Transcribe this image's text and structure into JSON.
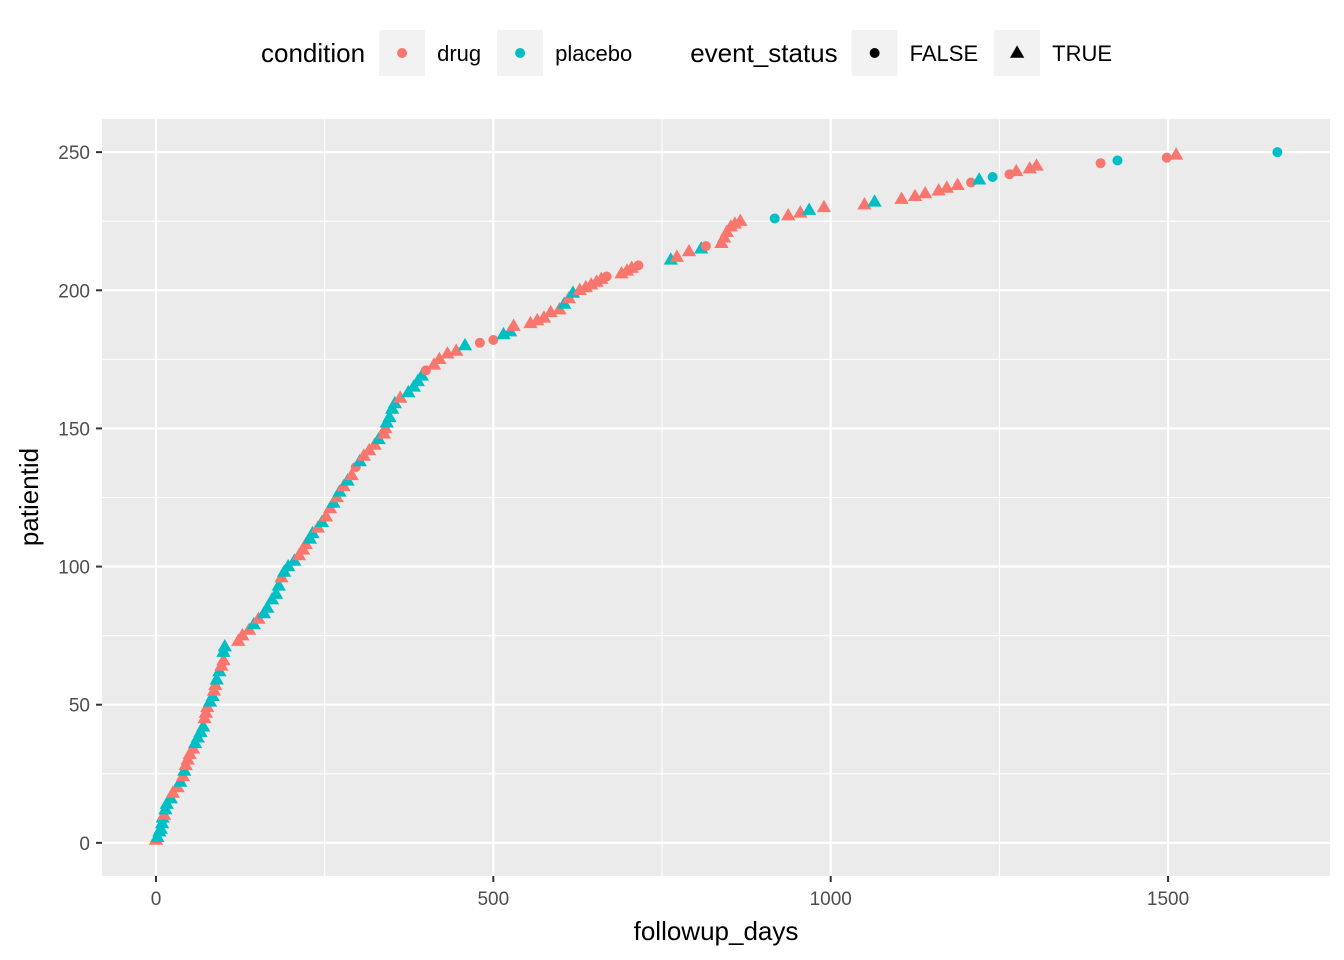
{
  "chart_data": {
    "type": "scatter",
    "xlabel": "followup_days",
    "ylabel": "patientid",
    "xlim": [
      -80,
      1740
    ],
    "ylim": [
      -12,
      262
    ],
    "x_ticks": [
      0,
      500,
      1000,
      1500
    ],
    "y_ticks": [
      0,
      50,
      100,
      150,
      200,
      250
    ],
    "x_tick_labels": [
      "0",
      "500",
      "1000",
      "1500"
    ],
    "y_tick_labels": [
      "0",
      "50",
      "100",
      "150",
      "200",
      "250"
    ],
    "grid": true,
    "legend_position": "top",
    "legends": [
      {
        "title": "condition",
        "mapping": "color",
        "entries": [
          {
            "label": "drug",
            "color": "#F8766D"
          },
          {
            "label": "placebo",
            "color": "#00BFC4"
          }
        ]
      },
      {
        "title": "event_status",
        "mapping": "shape",
        "entries": [
          {
            "label": "FALSE",
            "shape": "circle"
          },
          {
            "label": "TRUE",
            "shape": "triangle"
          }
        ]
      }
    ],
    "colors": {
      "drug": "#F8766D",
      "placebo": "#00BFC4"
    },
    "panel_background": "#EBEBEB",
    "points": [
      [
        0,
        1,
        "drug",
        "TRUE"
      ],
      [
        2,
        2,
        "placebo",
        "TRUE"
      ],
      [
        5,
        4,
        "placebo",
        "TRUE"
      ],
      [
        7,
        5,
        "placebo",
        "TRUE"
      ],
      [
        9,
        7,
        "placebo",
        "TRUE"
      ],
      [
        10,
        9,
        "placebo",
        "TRUE"
      ],
      [
        12,
        10,
        "drug",
        "TRUE"
      ],
      [
        14,
        12,
        "placebo",
        "TRUE"
      ],
      [
        16,
        14,
        "placebo",
        "TRUE"
      ],
      [
        22,
        16,
        "placebo",
        "TRUE"
      ],
      [
        25,
        18,
        "drug",
        "TRUE"
      ],
      [
        32,
        20,
        "drug",
        "TRUE"
      ],
      [
        36,
        22,
        "placebo",
        "TRUE"
      ],
      [
        40,
        24,
        "drug",
        "TRUE"
      ],
      [
        42,
        26,
        "placebo",
        "TRUE"
      ],
      [
        44,
        28,
        "drug",
        "TRUE"
      ],
      [
        47,
        30,
        "drug",
        "TRUE"
      ],
      [
        50,
        32,
        "drug",
        "TRUE"
      ],
      [
        55,
        34,
        "drug",
        "TRUE"
      ],
      [
        58,
        36,
        "placebo",
        "TRUE"
      ],
      [
        62,
        38,
        "placebo",
        "TRUE"
      ],
      [
        66,
        40,
        "placebo",
        "TRUE"
      ],
      [
        70,
        42,
        "placebo",
        "TRUE"
      ],
      [
        72,
        45,
        "drug",
        "TRUE"
      ],
      [
        74,
        47,
        "drug",
        "TRUE"
      ],
      [
        76,
        49,
        "drug",
        "TRUE"
      ],
      [
        80,
        51,
        "placebo",
        "TRUE"
      ],
      [
        84,
        53,
        "placebo",
        "TRUE"
      ],
      [
        86,
        55,
        "drug",
        "TRUE"
      ],
      [
        88,
        57,
        "drug",
        "TRUE"
      ],
      [
        90,
        59,
        "placebo",
        "TRUE"
      ],
      [
        94,
        62,
        "placebo",
        "TRUE"
      ],
      [
        97,
        64,
        "drug",
        "TRUE"
      ],
      [
        100,
        66,
        "drug",
        "TRUE"
      ],
      [
        100,
        69,
        "placebo",
        "TRUE"
      ],
      [
        102,
        71,
        "placebo",
        "TRUE"
      ],
      [
        122,
        73,
        "drug",
        "TRUE"
      ],
      [
        128,
        75,
        "drug",
        "TRUE"
      ],
      [
        138,
        77,
        "drug",
        "TRUE"
      ],
      [
        145,
        79,
        "placebo",
        "TRUE"
      ],
      [
        152,
        81,
        "drug",
        "TRUE"
      ],
      [
        160,
        83,
        "placebo",
        "TRUE"
      ],
      [
        165,
        85,
        "placebo",
        "TRUE"
      ],
      [
        172,
        88,
        "placebo",
        "TRUE"
      ],
      [
        178,
        90,
        "placebo",
        "TRUE"
      ],
      [
        182,
        93,
        "placebo",
        "TRUE"
      ],
      [
        186,
        96,
        "drug",
        "TRUE"
      ],
      [
        190,
        98,
        "placebo",
        "TRUE"
      ],
      [
        196,
        100,
        "placebo",
        "TRUE"
      ],
      [
        205,
        102,
        "placebo",
        "TRUE"
      ],
      [
        212,
        104,
        "drug",
        "TRUE"
      ],
      [
        218,
        106,
        "drug",
        "TRUE"
      ],
      [
        222,
        108,
        "drug",
        "TRUE"
      ],
      [
        228,
        110,
        "placebo",
        "TRUE"
      ],
      [
        232,
        112,
        "placebo",
        "TRUE"
      ],
      [
        240,
        114,
        "drug",
        "TRUE"
      ],
      [
        246,
        116,
        "placebo",
        "TRUE"
      ],
      [
        252,
        118,
        "drug",
        "TRUE"
      ],
      [
        258,
        121,
        "drug",
        "TRUE"
      ],
      [
        263,
        123,
        "placebo",
        "TRUE"
      ],
      [
        268,
        125,
        "drug",
        "TRUE"
      ],
      [
        272,
        127,
        "placebo",
        "TRUE"
      ],
      [
        278,
        129,
        "drug",
        "TRUE"
      ],
      [
        284,
        131,
        "placebo",
        "TRUE"
      ],
      [
        290,
        133,
        "drug",
        "TRUE"
      ],
      [
        296,
        136,
        "drug",
        "FALSE"
      ],
      [
        302,
        138,
        "placebo",
        "TRUE"
      ],
      [
        308,
        140,
        "drug",
        "TRUE"
      ],
      [
        316,
        142,
        "drug",
        "TRUE"
      ],
      [
        324,
        144,
        "drug",
        "TRUE"
      ],
      [
        330,
        146,
        "placebo",
        "TRUE"
      ],
      [
        338,
        148,
        "drug",
        "TRUE"
      ],
      [
        340,
        150,
        "drug",
        "TRUE"
      ],
      [
        342,
        152,
        "placebo",
        "TRUE"
      ],
      [
        346,
        154,
        "placebo",
        "TRUE"
      ],
      [
        350,
        157,
        "placebo",
        "TRUE"
      ],
      [
        354,
        159,
        "placebo",
        "TRUE"
      ],
      [
        362,
        161,
        "drug",
        "TRUE"
      ],
      [
        374,
        163,
        "placebo",
        "TRUE"
      ],
      [
        382,
        165,
        "placebo",
        "TRUE"
      ],
      [
        388,
        167,
        "placebo",
        "TRUE"
      ],
      [
        394,
        169,
        "placebo",
        "TRUE"
      ],
      [
        400,
        171,
        "drug",
        "FALSE"
      ],
      [
        412,
        173,
        "drug",
        "TRUE"
      ],
      [
        420,
        175,
        "drug",
        "TRUE"
      ],
      [
        432,
        177,
        "drug",
        "TRUE"
      ],
      [
        445,
        178,
        "drug",
        "TRUE"
      ],
      [
        458,
        180,
        "placebo",
        "TRUE"
      ],
      [
        480,
        181,
        "drug",
        "FALSE"
      ],
      [
        500,
        182,
        "drug",
        "FALSE"
      ],
      [
        515,
        184,
        "placebo",
        "TRUE"
      ],
      [
        525,
        185,
        "placebo",
        "TRUE"
      ],
      [
        530,
        187,
        "drug",
        "TRUE"
      ],
      [
        555,
        188,
        "drug",
        "TRUE"
      ],
      [
        565,
        189,
        "drug",
        "TRUE"
      ],
      [
        575,
        190,
        "drug",
        "TRUE"
      ],
      [
        585,
        192,
        "drug",
        "TRUE"
      ],
      [
        598,
        193,
        "drug",
        "TRUE"
      ],
      [
        605,
        195,
        "placebo",
        "TRUE"
      ],
      [
        612,
        197,
        "drug",
        "TRUE"
      ],
      [
        618,
        199,
        "placebo",
        "TRUE"
      ],
      [
        628,
        200,
        "drug",
        "TRUE"
      ],
      [
        637,
        201,
        "drug",
        "TRUE"
      ],
      [
        645,
        202,
        "drug",
        "TRUE"
      ],
      [
        653,
        203,
        "drug",
        "TRUE"
      ],
      [
        660,
        204,
        "drug",
        "TRUE"
      ],
      [
        668,
        205,
        "drug",
        "FALSE"
      ],
      [
        690,
        206,
        "drug",
        "TRUE"
      ],
      [
        698,
        207,
        "drug",
        "TRUE"
      ],
      [
        705,
        208,
        "drug",
        "TRUE"
      ],
      [
        715,
        209,
        "drug",
        "FALSE"
      ],
      [
        763,
        211,
        "placebo",
        "TRUE"
      ],
      [
        772,
        212,
        "drug",
        "TRUE"
      ],
      [
        790,
        214,
        "drug",
        "TRUE"
      ],
      [
        808,
        215,
        "placebo",
        "TRUE"
      ],
      [
        815,
        216,
        "drug",
        "FALSE"
      ],
      [
        838,
        217,
        "drug",
        "TRUE"
      ],
      [
        842,
        219,
        "drug",
        "TRUE"
      ],
      [
        846,
        221,
        "drug",
        "TRUE"
      ],
      [
        852,
        223,
        "drug",
        "TRUE"
      ],
      [
        858,
        224,
        "drug",
        "TRUE"
      ],
      [
        866,
        225,
        "drug",
        "TRUE"
      ],
      [
        917,
        226,
        "placebo",
        "FALSE"
      ],
      [
        937,
        227,
        "drug",
        "TRUE"
      ],
      [
        955,
        228,
        "drug",
        "TRUE"
      ],
      [
        968,
        229,
        "placebo",
        "TRUE"
      ],
      [
        990,
        230,
        "drug",
        "TRUE"
      ],
      [
        1050,
        231,
        "drug",
        "TRUE"
      ],
      [
        1065,
        232,
        "placebo",
        "TRUE"
      ],
      [
        1105,
        233,
        "drug",
        "TRUE"
      ],
      [
        1125,
        234,
        "drug",
        "TRUE"
      ],
      [
        1140,
        235,
        "drug",
        "TRUE"
      ],
      [
        1160,
        236,
        "drug",
        "TRUE"
      ],
      [
        1172,
        237,
        "drug",
        "TRUE"
      ],
      [
        1188,
        238,
        "drug",
        "TRUE"
      ],
      [
        1208,
        239,
        "drug",
        "FALSE"
      ],
      [
        1220,
        240,
        "placebo",
        "TRUE"
      ],
      [
        1240,
        241,
        "placebo",
        "FALSE"
      ],
      [
        1265,
        242,
        "drug",
        "FALSE"
      ],
      [
        1275,
        243,
        "drug",
        "TRUE"
      ],
      [
        1295,
        244,
        "drug",
        "TRUE"
      ],
      [
        1305,
        245,
        "drug",
        "TRUE"
      ],
      [
        1400,
        246,
        "drug",
        "FALSE"
      ],
      [
        1425,
        247,
        "placebo",
        "FALSE"
      ],
      [
        1498,
        248,
        "drug",
        "FALSE"
      ],
      [
        1512,
        249,
        "drug",
        "TRUE"
      ],
      [
        1662,
        250,
        "placebo",
        "FALSE"
      ]
    ]
  }
}
